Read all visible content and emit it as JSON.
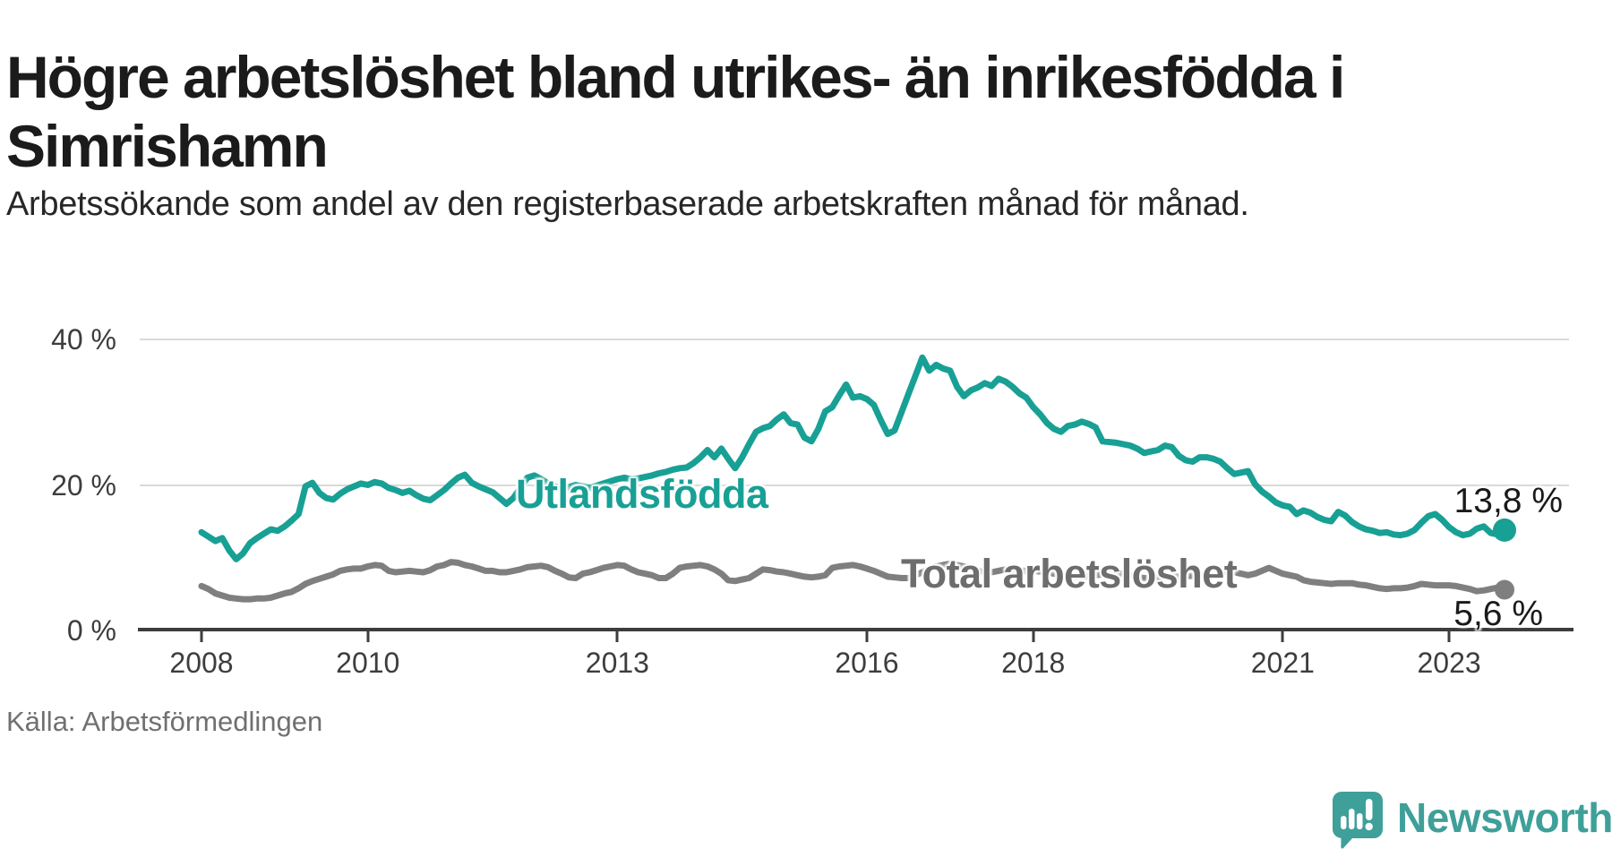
{
  "header": {
    "title": "Högre arbetslöshet bland utrikes- än inrikesfödda i Simrishamn",
    "subtitle": "Arbetssökande som andel av den registerbaserade arbetskraften månad för månad."
  },
  "footer": {
    "source": "Källa: Arbetsförmedlingen",
    "brand_name": "Newsworthy",
    "brand_color": "#3f9f99"
  },
  "chart_data": {
    "type": "line",
    "title": "Högre arbetslöshet bland utrikes- än inrikesfödda i Simrishamn",
    "subtitle": "Arbetssökande som andel av den registerbaserade arbetskraften månad för månad.",
    "frequency": "monthly",
    "x_start": "2008-01",
    "x_end": "2023-09",
    "ylim": [
      0,
      44
    ],
    "grid": "horizontal",
    "legend_position": "inline-labels",
    "y_ticks": [
      {
        "label": "40 %",
        "value": 40
      },
      {
        "label": "20 %",
        "value": 20
      },
      {
        "label": "0 %",
        "value": 0
      }
    ],
    "x_ticks": [
      {
        "label": "2008",
        "month_index": 0
      },
      {
        "label": "2010",
        "month_index": 24
      },
      {
        "label": "2013",
        "month_index": 60
      },
      {
        "label": "2016",
        "month_index": 96
      },
      {
        "label": "2018",
        "month_index": 120
      },
      {
        "label": "2021",
        "month_index": 156
      },
      {
        "label": "2023",
        "month_index": 180
      }
    ],
    "series": [
      {
        "name": "Utlandsfödda",
        "color": "#18a095",
        "end_label": "13,8 %",
        "end_value": 13.8,
        "values": [
          13.5,
          12.9,
          12.3,
          12.7,
          11.0,
          9.8,
          10.6,
          12.0,
          12.7,
          13.3,
          13.9,
          13.7,
          14.3,
          15.1,
          16.0,
          19.8,
          20.3,
          18.9,
          18.2,
          18.0,
          18.8,
          19.4,
          19.8,
          20.2,
          20.0,
          20.4,
          20.2,
          19.6,
          19.3,
          18.9,
          19.2,
          18.6,
          18.1,
          17.9,
          18.6,
          19.3,
          20.2,
          21.0,
          21.4,
          20.3,
          19.8,
          19.4,
          19.0,
          18.2,
          17.4,
          18.2,
          19.6,
          21.0,
          21.3,
          20.8,
          20.2,
          19.8,
          19.5,
          19.7,
          20.0,
          19.8,
          19.6,
          19.9,
          20.2,
          20.5,
          20.8,
          21.0,
          20.8,
          20.9,
          21.1,
          21.3,
          21.6,
          21.8,
          22.1,
          22.3,
          22.4,
          23.0,
          23.8,
          24.8,
          23.8,
          25.0,
          23.6,
          22.3,
          23.8,
          25.6,
          27.3,
          27.8,
          28.1,
          29.0,
          29.7,
          28.5,
          28.3,
          26.5,
          26.0,
          27.7,
          30.1,
          30.7,
          32.3,
          33.8,
          32.0,
          32.2,
          31.8,
          31.0,
          28.9,
          27.0,
          27.5,
          30.0,
          32.5,
          35.0,
          37.5,
          35.7,
          36.5,
          36.0,
          35.7,
          33.5,
          32.2,
          33.0,
          33.4,
          34.0,
          33.6,
          34.6,
          34.2,
          33.5,
          32.6,
          32.0,
          30.7,
          29.7,
          28.5,
          27.7,
          27.3,
          28.1,
          28.3,
          28.7,
          28.4,
          27.9,
          26.0,
          25.9,
          25.8,
          25.6,
          25.4,
          25.0,
          24.4,
          24.6,
          24.8,
          25.4,
          25.2,
          24.0,
          23.4,
          23.2,
          23.8,
          23.8,
          23.6,
          23.2,
          22.3,
          21.5,
          21.7,
          21.9,
          20.1,
          19.1,
          18.4,
          17.6,
          17.2,
          17.0,
          16.0,
          16.5,
          16.2,
          15.6,
          15.2,
          15.0,
          16.3,
          15.8,
          14.9,
          14.3,
          13.9,
          13.7,
          13.4,
          13.5,
          13.2,
          13.1,
          13.3,
          13.8,
          14.8,
          15.7,
          16.0,
          15.2,
          14.2,
          13.5,
          13.1,
          13.3,
          14.0,
          14.3,
          13.4,
          13.2,
          13.8
        ]
      },
      {
        "name": "Total arbetslöshet",
        "color": "#7f7f7f",
        "end_label": "5,6 %",
        "end_value": 5.6,
        "values": [
          6.1,
          5.7,
          5.1,
          4.8,
          4.5,
          4.4,
          4.3,
          4.3,
          4.4,
          4.4,
          4.5,
          4.8,
          5.1,
          5.3,
          5.8,
          6.4,
          6.8,
          7.1,
          7.4,
          7.7,
          8.2,
          8.4,
          8.5,
          8.5,
          8.8,
          9.0,
          8.9,
          8.2,
          8.0,
          8.1,
          8.2,
          8.1,
          8.0,
          8.3,
          8.8,
          9.0,
          9.4,
          9.3,
          9.0,
          8.8,
          8.5,
          8.2,
          8.2,
          8.0,
          8.0,
          8.2,
          8.4,
          8.7,
          8.8,
          8.9,
          8.7,
          8.2,
          7.8,
          7.3,
          7.2,
          7.8,
          8.0,
          8.3,
          8.6,
          8.8,
          9.0,
          8.9,
          8.4,
          8.0,
          7.8,
          7.6,
          7.2,
          7.2,
          7.8,
          8.6,
          8.8,
          8.9,
          9.0,
          8.8,
          8.4,
          7.8,
          6.9,
          6.8,
          7.0,
          7.2,
          7.8,
          8.4,
          8.3,
          8.1,
          8.0,
          7.8,
          7.6,
          7.4,
          7.3,
          7.4,
          7.6,
          8.6,
          8.8,
          8.9,
          9.0,
          8.8,
          8.5,
          8.2,
          7.8,
          7.4,
          7.3,
          7.2,
          7.2,
          7.6,
          8.0,
          8.4,
          8.8,
          9.0,
          9.2,
          9.0,
          8.8,
          8.5,
          8.2,
          8.0,
          8.0,
          8.2,
          8.4,
          8.3,
          8.2,
          8.2,
          8.2,
          8.1,
          8.0,
          7.8,
          7.6,
          7.5,
          7.4,
          7.4,
          7.5,
          7.6,
          7.7,
          7.8,
          7.9,
          7.8,
          7.6,
          7.4,
          7.2,
          7.2,
          7.3,
          7.4,
          7.4,
          7.4,
          7.5,
          7.5,
          7.4,
          7.4,
          7.6,
          8.0,
          8.1,
          8.0,
          7.8,
          7.6,
          7.8,
          8.2,
          8.6,
          8.2,
          7.8,
          7.6,
          7.4,
          6.9,
          6.7,
          6.6,
          6.5,
          6.4,
          6.5,
          6.5,
          6.5,
          6.3,
          6.2,
          6.0,
          5.8,
          5.7,
          5.8,
          5.8,
          5.9,
          6.1,
          6.4,
          6.3,
          6.2,
          6.2,
          6.2,
          6.1,
          5.9,
          5.7,
          5.4,
          5.5,
          5.7,
          5.9,
          5.6
        ]
      }
    ]
  }
}
